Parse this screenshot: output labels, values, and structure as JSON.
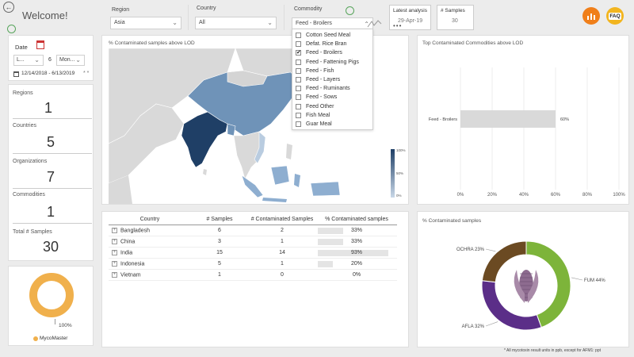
{
  "header": {
    "welcome": "Welcome!",
    "region_label": "Region",
    "region_value": "Asia",
    "country_label": "Country",
    "country_value": "All",
    "commodity_label": "Commodity",
    "commodity_value": "Feed - Broilers",
    "latest_analysis_label": "Latest analysis",
    "latest_analysis_value": "29-Apr-19",
    "samples_label": "# Samples",
    "samples_value": "30",
    "faq_label": "FAQ"
  },
  "commodity_dropdown": {
    "options": [
      {
        "label": "Cotton Seed Meal",
        "checked": false
      },
      {
        "label": "Defat. Rice Bran",
        "checked": false
      },
      {
        "label": "Feed - Broilers",
        "checked": true
      },
      {
        "label": "Feed - Fattening Pigs",
        "checked": false
      },
      {
        "label": "Feed - Fish",
        "checked": false
      },
      {
        "label": "Feed - Layers",
        "checked": false
      },
      {
        "label": "Feed - Ruminants",
        "checked": false
      },
      {
        "label": "Feed - Sows",
        "checked": false
      },
      {
        "label": "Feed Other",
        "checked": false
      },
      {
        "label": "Fish Meal",
        "checked": false
      },
      {
        "label": "Guar Meal",
        "checked": false
      }
    ]
  },
  "date_filter": {
    "label": "Date",
    "period_short": "L...",
    "count": "6",
    "unit": "Mon...",
    "range": "12/14/2018 - 6/13/2019"
  },
  "kpis": [
    {
      "label": "Regions",
      "value": "1"
    },
    {
      "label": "Countries",
      "value": "5"
    },
    {
      "label": "Organizations",
      "value": "7"
    },
    {
      "label": "Commodities",
      "value": "1"
    },
    {
      "label": "Total # Samples",
      "value": "30"
    }
  ],
  "gauge": {
    "value_label": "100%",
    "percent": 1.0,
    "legend": "MycoMaster",
    "color": "#f0b04c"
  },
  "map": {
    "title": "% Contaminated samples above LOD",
    "scale_top": "100%",
    "scale_mid": "50%",
    "scale_bottom": "0%"
  },
  "top_commodities": {
    "title": "Top Contaminated Commodities above LOD",
    "chart_data": {
      "type": "bar",
      "categories": [
        "Feed - Broilers"
      ],
      "values": [
        60
      ],
      "data_labels": [
        "60%"
      ],
      "xlim": [
        0,
        100
      ],
      "xticks": [
        "0%",
        "20%",
        "40%",
        "60%",
        "80%",
        "100%"
      ]
    }
  },
  "table": {
    "headers": [
      "Country",
      "# Samples",
      "# Contaminated Samples",
      "% Contaminated samples"
    ],
    "rows": [
      {
        "country": "Bangladesh",
        "samples": "6",
        "contaminated": "2",
        "pct": "33%",
        "pct_value": 33
      },
      {
        "country": "China",
        "samples": "3",
        "contaminated": "1",
        "pct": "33%",
        "pct_value": 33
      },
      {
        "country": "India",
        "samples": "15",
        "contaminated": "14",
        "pct": "93%",
        "pct_value": 93
      },
      {
        "country": "Indonesia",
        "samples": "5",
        "contaminated": "1",
        "pct": "20%",
        "pct_value": 20
      },
      {
        "country": "Vietnam",
        "samples": "1",
        "contaminated": "0",
        "pct": "0%",
        "pct_value": 0
      }
    ]
  },
  "donut": {
    "title": "% Contaminated samples",
    "chart_data": {
      "type": "pie",
      "slices": [
        {
          "name": "FUM",
          "value": 44,
          "label": "FUM 44%",
          "color": "#7db43a"
        },
        {
          "name": "AFLA",
          "value": 32,
          "label": "AFLA 32%",
          "color": "#5b2e88"
        },
        {
          "name": "OCHRA",
          "value": 23,
          "label": "OCHRA 23%",
          "color": "#6b4a22"
        }
      ]
    }
  },
  "footnote": "* All mycotoxin result units in ppb, except for AFM1: ppt",
  "colors": {
    "india": "#1f3f66",
    "china": "#6f93b8",
    "mid": "#8eaed0",
    "light": "#b9cce0",
    "land": "#d9d9d9",
    "accent_orange": "#f07f1a"
  }
}
